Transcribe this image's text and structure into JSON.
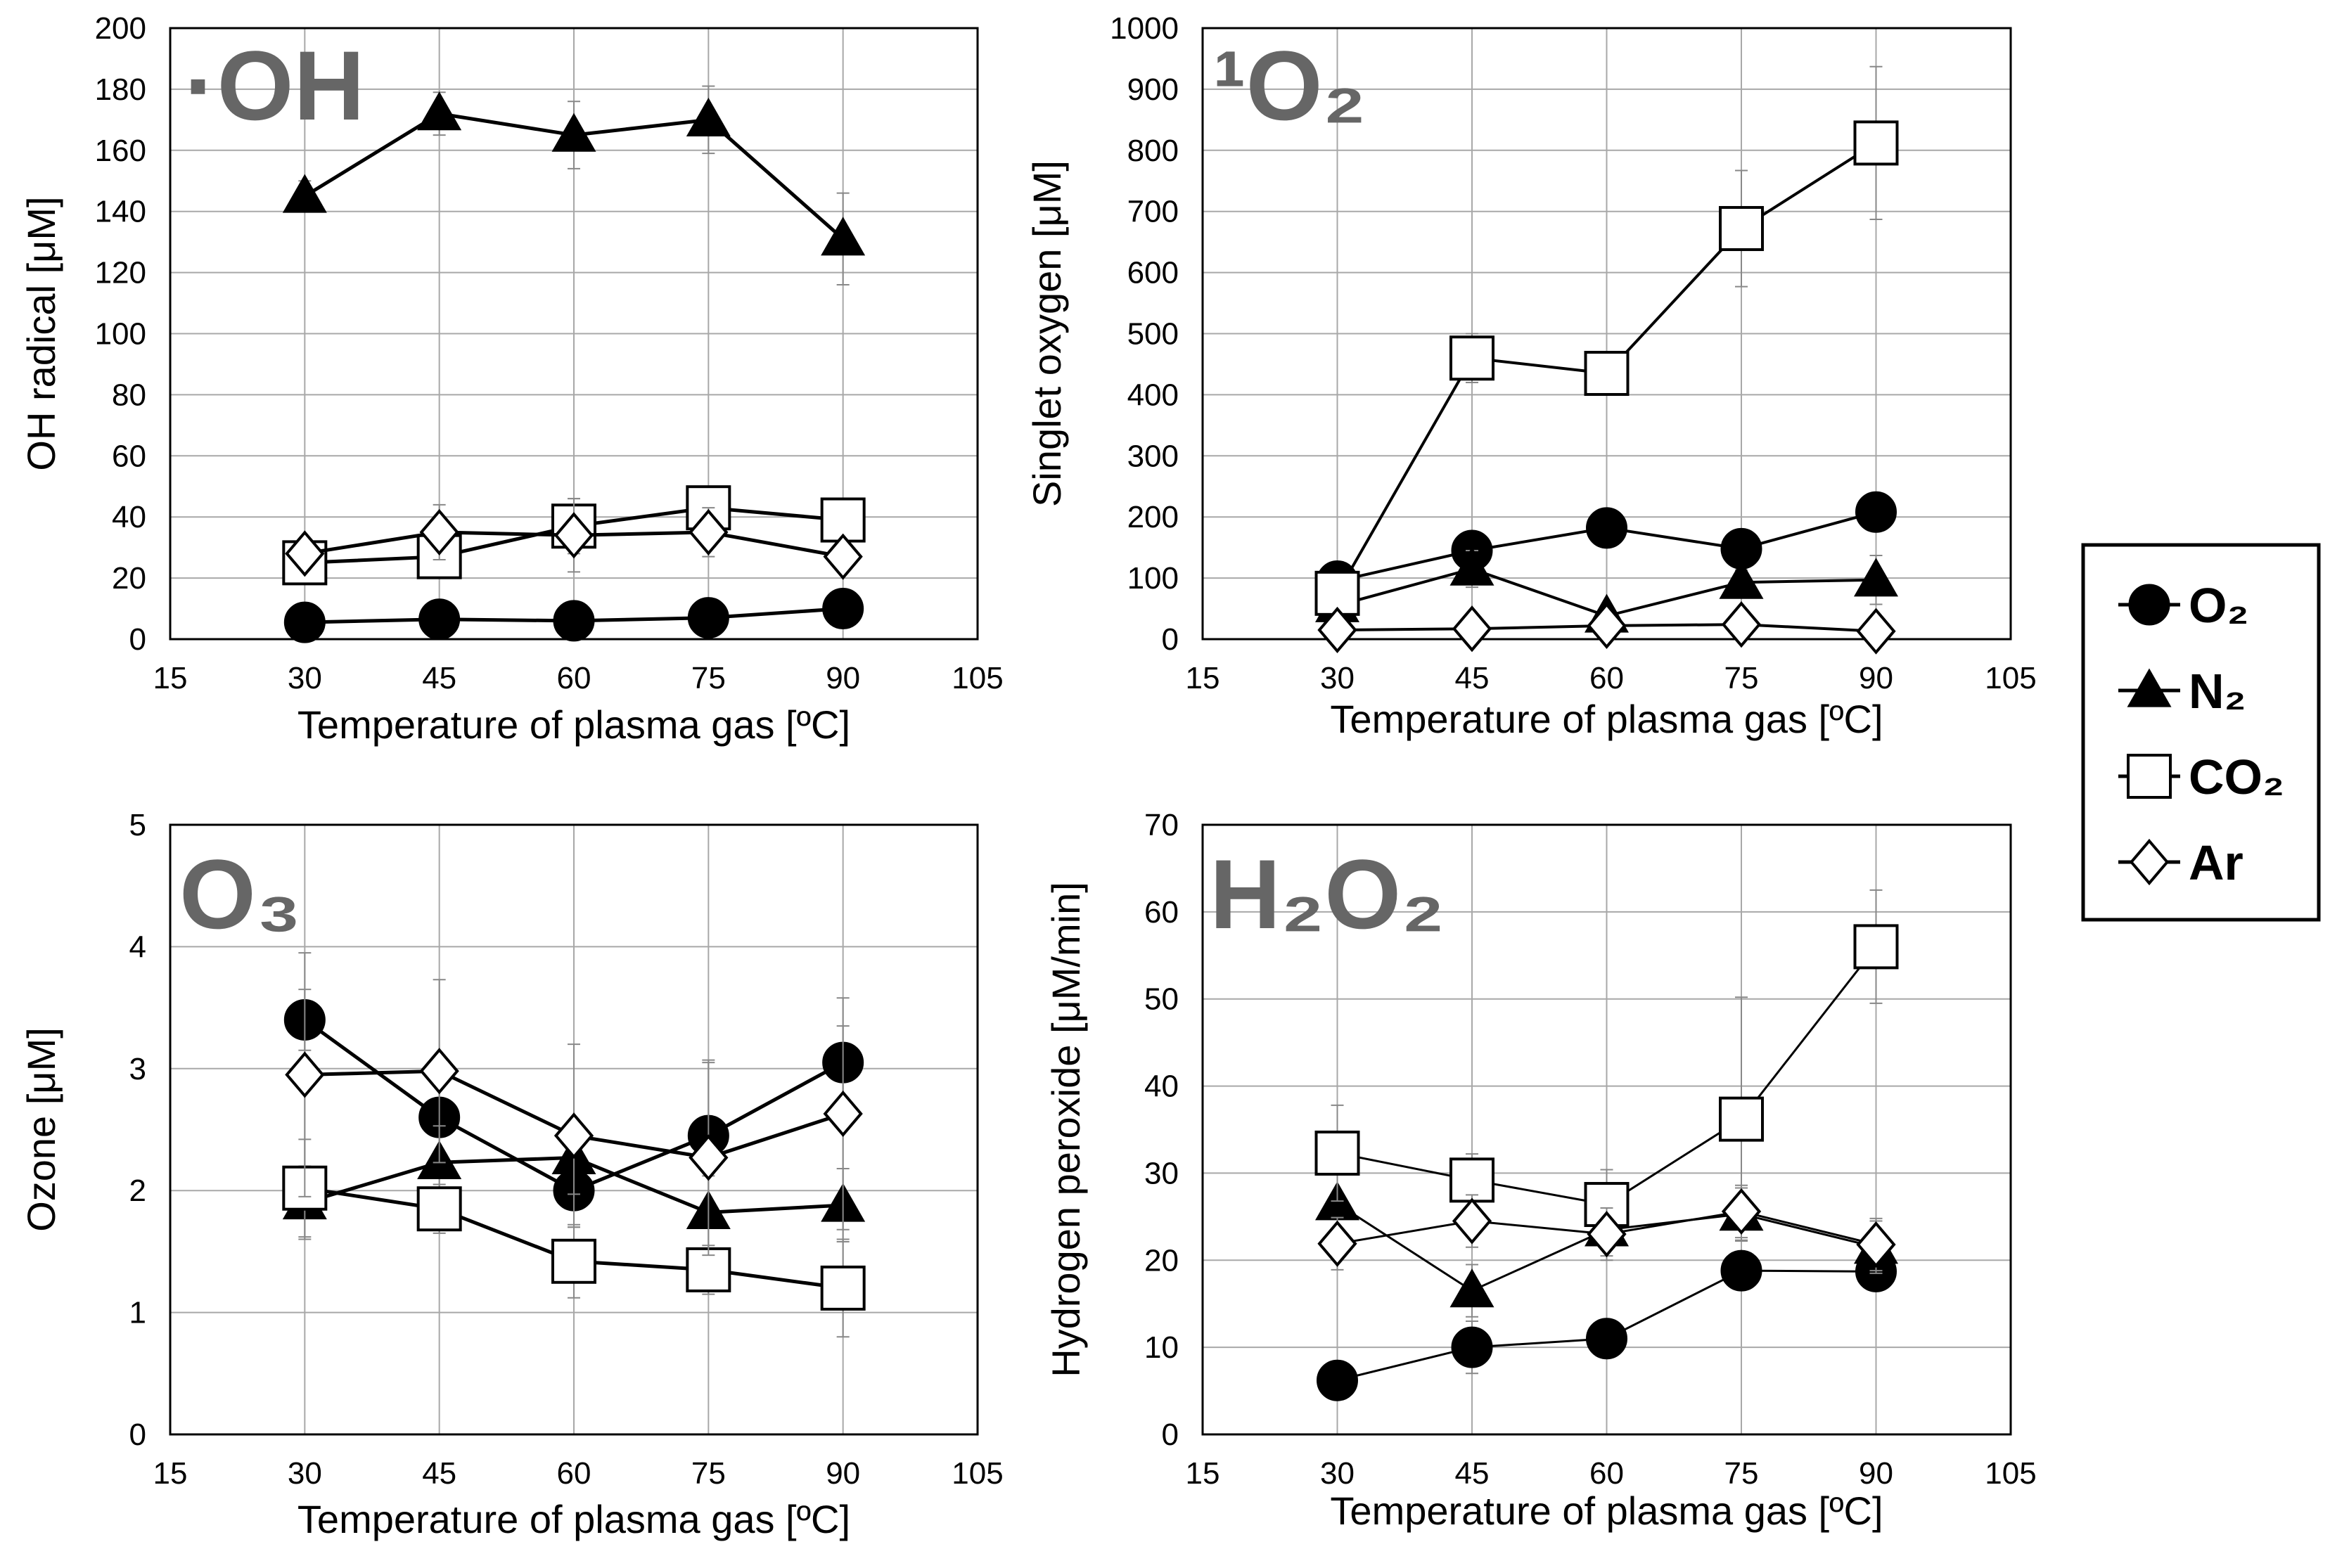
{
  "colors": {
    "marker_fill_solid": "#000000",
    "marker_fill_open": "#ffffff",
    "title_gray": "#666666",
    "grid": "#a8a8a8"
  },
  "legend": {
    "placement": "right",
    "entries": [
      {
        "name": "O₂",
        "marker": "filled-circle"
      },
      {
        "name": "N₂",
        "marker": "filled-triangle"
      },
      {
        "name": "CO₂",
        "marker": "open-square"
      },
      {
        "name": "Ar",
        "marker": "open-diamond"
      }
    ]
  },
  "chart_data": [
    {
      "type": "line",
      "title": "·OH",
      "xlabel": "Temperature of plasma gas [ºC]",
      "ylabel": "OH radical [μM]",
      "xlim": [
        15,
        105
      ],
      "xticks": [
        15,
        30,
        45,
        60,
        75,
        90,
        105
      ],
      "ylim": [
        0,
        200
      ],
      "yticks": [
        0,
        20,
        40,
        60,
        80,
        100,
        120,
        140,
        160,
        180,
        200
      ],
      "grid": true,
      "x": [
        30,
        45,
        60,
        75,
        90
      ],
      "series": [
        {
          "name": "O₂",
          "marker": "filled-circle",
          "values": [
            5.5,
            6.5,
            6,
            7,
            10
          ],
          "errors": [
            1,
            1,
            1,
            1,
            2
          ]
        },
        {
          "name": "N₂",
          "marker": "filled-triangle",
          "values": [
            145,
            172,
            165,
            170,
            131
          ],
          "errors": [
            5,
            7,
            11,
            11,
            15
          ]
        },
        {
          "name": "CO₂",
          "marker": "open-square",
          "values": [
            25,
            27,
            37,
            43,
            39
          ],
          "errors": [
            3,
            4,
            9,
            4,
            4
          ]
        },
        {
          "name": "Ar",
          "marker": "open-diamond",
          "values": [
            28,
            35,
            34,
            35,
            27
          ],
          "errors": [
            3,
            9,
            12,
            8,
            4
          ]
        }
      ]
    },
    {
      "type": "line",
      "title": "¹O₂",
      "xlabel": "Temperature of plasma gas [ºC]",
      "ylabel": "Singlet oxygen [μM]",
      "xlim": [
        15,
        105
      ],
      "xticks": [
        15,
        30,
        45,
        60,
        75,
        90,
        105
      ],
      "ylim": [
        0,
        1000
      ],
      "yticks": [
        0,
        100,
        200,
        300,
        400,
        500,
        600,
        700,
        800,
        900,
        1000
      ],
      "grid": true,
      "x": [
        30,
        45,
        60,
        75,
        90
      ],
      "series": [
        {
          "name": "O₂",
          "marker": "filled-circle",
          "values": [
            95,
            145,
            182,
            148,
            208
          ],
          "errors": [
            10,
            15,
            25,
            20,
            25
          ]
        },
        {
          "name": "N₂",
          "marker": "filled-triangle",
          "values": [
            55,
            115,
            38,
            93,
            97
          ],
          "errors": [
            20,
            30,
            10,
            20,
            40
          ]
        },
        {
          "name": "CO₂",
          "marker": "open-square",
          "values": [
            75,
            460,
            435,
            672,
            812
          ],
          "errors": [
            15,
            40,
            25,
            95,
            125
          ]
        },
        {
          "name": "Ar",
          "marker": "open-diamond",
          "values": [
            15,
            17,
            22,
            24,
            13
          ],
          "errors": [
            5,
            5,
            5,
            5,
            5
          ]
        }
      ]
    },
    {
      "type": "line",
      "title": "O₃",
      "xlabel": "Temperature of plasma gas [ºC]",
      "ylabel": "Ozone [μM]",
      "xlim": [
        15,
        105
      ],
      "xticks": [
        15,
        30,
        45,
        60,
        75,
        90,
        105
      ],
      "ylim": [
        0,
        5
      ],
      "yticks": [
        0,
        1,
        2,
        3,
        4,
        5
      ],
      "grid": true,
      "x": [
        30,
        45,
        60,
        75,
        90
      ],
      "series": [
        {
          "name": "O₂",
          "marker": "filled-circle",
          "values": [
            3.4,
            2.6,
            2.0,
            2.45,
            3.05
          ],
          "errors": [
            0.25,
            0.5,
            0.3,
            0.6,
            0.3
          ]
        },
        {
          "name": "N₂",
          "marker": "filled-triangle",
          "values": [
            1.9,
            2.23,
            2.27,
            1.82,
            1.88
          ],
          "errors": [
            0.3,
            0.3,
            0.3,
            0.3,
            0.3
          ]
        },
        {
          "name": "CO₂",
          "marker": "open-square",
          "values": [
            2.02,
            1.85,
            1.42,
            1.35,
            1.2
          ],
          "errors": [
            0.4,
            0.2,
            0.3,
            0.2,
            0.4
          ]
        },
        {
          "name": "Ar",
          "marker": "open-diamond",
          "values": [
            2.95,
            2.98,
            2.45,
            2.27,
            2.63
          ],
          "errors": [
            1.0,
            0.75,
            0.75,
            0.8,
            0.95
          ]
        }
      ]
    },
    {
      "type": "line",
      "title": "H₂O₂",
      "xlabel": "Temperature of plasma gas [ºC]",
      "ylabel": "Hydrogen peroxide [μM/min]",
      "xlim": [
        15,
        105
      ],
      "xticks": [
        15,
        30,
        45,
        60,
        75,
        90,
        105
      ],
      "ylim": [
        0,
        70
      ],
      "yticks": [
        0,
        10,
        20,
        30,
        40,
        50,
        60,
        70
      ],
      "grid": true,
      "x": [
        30,
        45,
        60,
        75,
        90
      ],
      "series": [
        {
          "name": "O₂",
          "marker": "filled-circle",
          "values": [
            6.2,
            10,
            11,
            18.8,
            18.7
          ],
          "errors": [
            1,
            3,
            2,
            2,
            2
          ]
        },
        {
          "name": "N₂",
          "marker": "filled-triangle",
          "values": [
            26.5,
            16.5,
            23.5,
            25.3,
            21.5
          ],
          "errors": [
            4,
            3,
            3,
            3,
            3
          ]
        },
        {
          "name": "CO₂",
          "marker": "open-square",
          "values": [
            32.3,
            29.2,
            26.4,
            36.2,
            56
          ],
          "errors": [
            5.5,
            3,
            4,
            14,
            6.5
          ]
        },
        {
          "name": "Ar",
          "marker": "open-diamond",
          "values": [
            21.9,
            24.5,
            23,
            25.6,
            21.8
          ],
          "errors": [
            3,
            3,
            3,
            3,
            3
          ]
        }
      ]
    }
  ]
}
